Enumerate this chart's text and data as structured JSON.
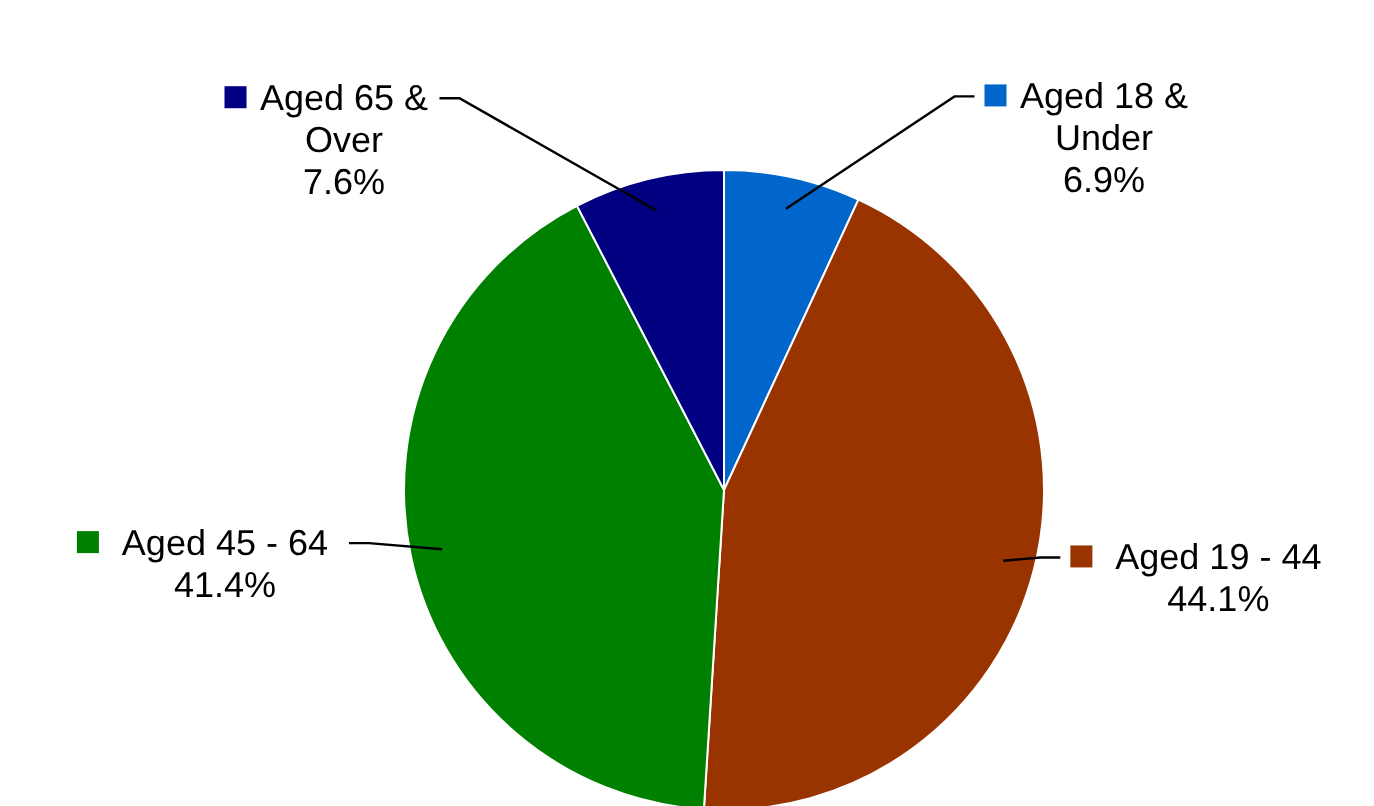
{
  "chart_data": {
    "type": "pie",
    "categories": [
      "Aged 18 & Under",
      "Aged 19 - 44",
      "Aged 45 - 64",
      "Aged 65 & Over"
    ],
    "values": [
      6.9,
      44.1,
      41.4,
      7.6
    ],
    "value_labels": [
      "6.9%",
      "44.1%",
      "41.4%",
      "7.6%"
    ],
    "colors": [
      "#0066cc",
      "#993300",
      "#008000",
      "#000080"
    ],
    "legend": "top"
  }
}
